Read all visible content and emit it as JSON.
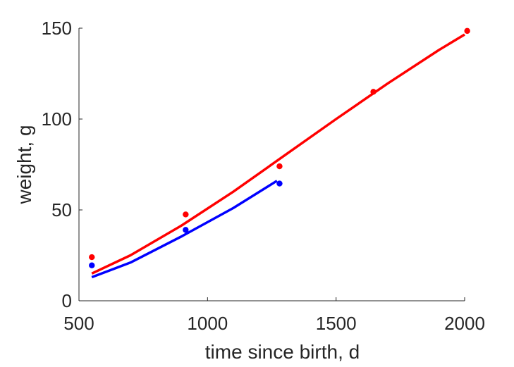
{
  "chart_data": {
    "type": "scatter",
    "title": "",
    "xlabel": "time since birth, d",
    "ylabel": "weight, g",
    "xlim": [
      500,
      2000
    ],
    "ylim": [
      0,
      150
    ],
    "xticks": [
      500,
      1000,
      1500,
      2000
    ],
    "yticks": [
      0,
      50,
      100,
      150
    ],
    "xtick_labels": [
      "500",
      "1000",
      "1500",
      "2000"
    ],
    "ytick_labels": [
      "0",
      "50",
      "100",
      "150"
    ],
    "grid": false,
    "legend": "none",
    "series": [
      {
        "color": "#ff0000",
        "points": [
          {
            "x": 550,
            "y": 24
          },
          {
            "x": 915,
            "y": 47.5
          },
          {
            "x": 1280,
            "y": 74
          },
          {
            "x": 1645,
            "y": 115
          },
          {
            "x": 2010,
            "y": 148.5
          }
        ],
        "fit_line": [
          {
            "x": 550,
            "y": 15
          },
          {
            "x": 700,
            "y": 25
          },
          {
            "x": 900,
            "y": 41.5
          },
          {
            "x": 1100,
            "y": 60
          },
          {
            "x": 1300,
            "y": 80
          },
          {
            "x": 1500,
            "y": 100
          },
          {
            "x": 1700,
            "y": 119.5
          },
          {
            "x": 1900,
            "y": 138
          },
          {
            "x": 2000,
            "y": 146.5
          }
        ]
      },
      {
        "color": "#0000ff",
        "points": [
          {
            "x": 550,
            "y": 19.5
          },
          {
            "x": 915,
            "y": 39
          },
          {
            "x": 1280,
            "y": 64.5
          }
        ],
        "fit_line": [
          {
            "x": 550,
            "y": 13
          },
          {
            "x": 700,
            "y": 21
          },
          {
            "x": 900,
            "y": 35.5
          },
          {
            "x": 1100,
            "y": 51
          },
          {
            "x": 1270,
            "y": 66
          }
        ]
      }
    ]
  }
}
